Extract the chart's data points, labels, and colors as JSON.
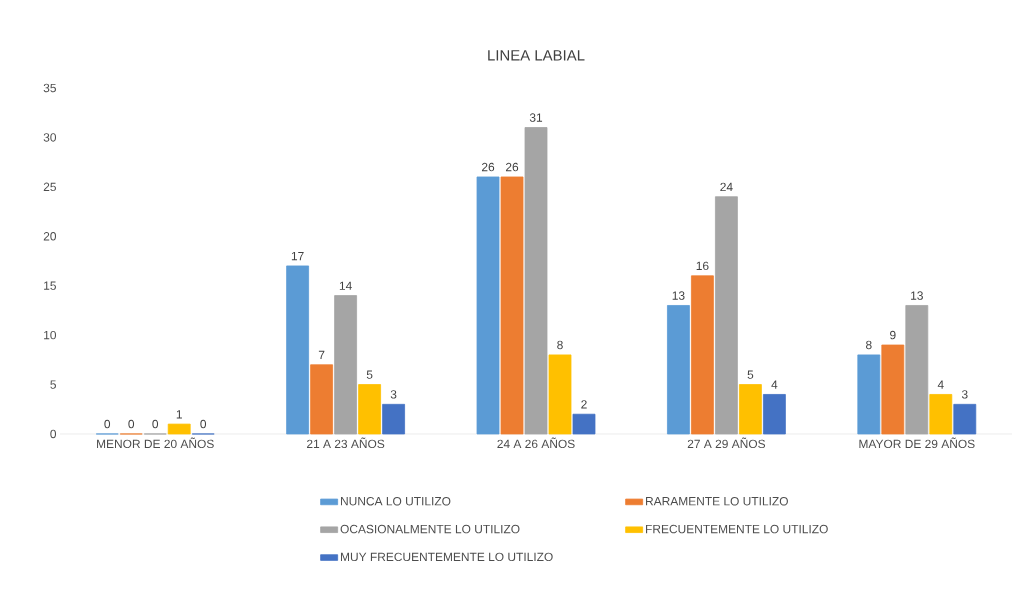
{
  "chart_data": {
    "type": "bar",
    "title": "LINEA LABIAL",
    "categories": [
      "MENOR DE 20 AÑOS",
      "21 A 23 AÑOS",
      "24 A 26 AÑOS",
      "27 A 29 AÑOS",
      "MAYOR DE 29 AÑOS"
    ],
    "series": [
      {
        "name": "NUNCA LO UTILIZO",
        "color": "#5b9bd5",
        "values": [
          0,
          17,
          26,
          13,
          8
        ]
      },
      {
        "name": "RARAMENTE LO UTILIZO",
        "color": "#ed7d31",
        "values": [
          0,
          7,
          26,
          16,
          9
        ]
      },
      {
        "name": "OCASIONALMENTE LO UTILIZO",
        "color": "#a5a5a5",
        "values": [
          0,
          14,
          31,
          24,
          13
        ]
      },
      {
        "name": "FRECUENTEMENTE LO UTILIZO",
        "color": "#ffc000",
        "values": [
          1,
          5,
          8,
          5,
          4
        ]
      },
      {
        "name": "MUY FRECUENTEMENTE LO UTILIZO",
        "color": "#4472c4",
        "values": [
          0,
          3,
          2,
          4,
          3
        ]
      }
    ],
    "ylim": [
      0,
      35
    ],
    "yticks": [
      0,
      5,
      10,
      15,
      20,
      25,
      30,
      35
    ],
    "data_labels": true,
    "legend": "bottom",
    "grid": false
  }
}
